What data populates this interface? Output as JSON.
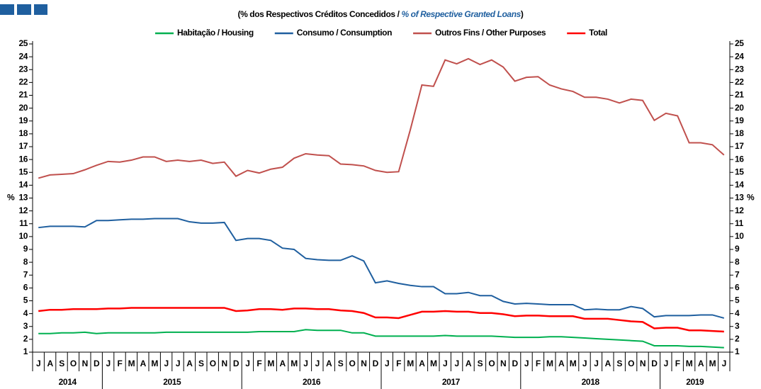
{
  "chart_data": {
    "type": "line",
    "subtitle": [
      "(% dos Respectivos  Créditos Concedidos  / ",
      "% of Respective Granted Loans",
      ")"
    ],
    "y_label": "%",
    "categories": [
      "J",
      "A",
      "S",
      "O",
      "N",
      "D",
      "J",
      "F",
      "M",
      "A",
      "M",
      "J",
      "J",
      "A",
      "S",
      "O",
      "N",
      "D",
      "J",
      "F",
      "M",
      "A",
      "M",
      "J",
      "J",
      "A",
      "S",
      "O",
      "N",
      "D",
      "J",
      "F",
      "M",
      "A",
      "M",
      "J",
      "J",
      "A",
      "S",
      "O",
      "N",
      "D",
      "J",
      "F",
      "M",
      "A",
      "M",
      "J",
      "J",
      "A",
      "S",
      "O",
      "N",
      "D",
      "J",
      "F",
      "M",
      "A",
      "M",
      "J"
    ],
    "x_groups": [
      "2014",
      "2015",
      "2016",
      "2017",
      "2018",
      "2019"
    ],
    "ylim": [
      1,
      25
    ],
    "yticks": [
      1,
      2,
      3,
      4,
      5,
      6,
      7,
      8,
      9,
      10,
      11,
      12,
      13,
      14,
      15,
      16,
      17,
      18,
      19,
      20,
      21,
      22,
      23,
      24,
      25
    ],
    "series": [
      {
        "name": "Habitação / Housing",
        "color": "#00b050",
        "values": [
          2.45,
          2.45,
          2.5,
          2.5,
          2.55,
          2.45,
          2.5,
          2.5,
          2.5,
          2.5,
          2.5,
          2.55,
          2.55,
          2.55,
          2.55,
          2.55,
          2.55,
          2.55,
          2.55,
          2.6,
          2.6,
          2.6,
          2.6,
          2.75,
          2.7,
          2.7,
          2.7,
          2.5,
          2.5,
          2.25,
          2.25,
          2.25,
          2.25,
          2.25,
          2.25,
          2.3,
          2.25,
          2.25,
          2.25,
          2.25,
          2.2,
          2.15,
          2.15,
          2.15,
          2.2,
          2.2,
          2.15,
          2.1,
          2.05,
          2.0,
          1.95,
          1.9,
          1.85,
          1.5,
          1.5,
          1.5,
          1.45,
          1.45,
          1.4,
          1.35
        ]
      },
      {
        "name": "Consumo / Consumption",
        "color": "#1f5f9f",
        "values": [
          10.7,
          10.8,
          10.8,
          10.8,
          10.75,
          11.25,
          11.25,
          11.3,
          11.35,
          11.35,
          11.4,
          11.4,
          11.4,
          11.15,
          11.05,
          11.05,
          11.1,
          9.7,
          9.85,
          9.85,
          9.7,
          9.1,
          9.0,
          8.3,
          8.2,
          8.15,
          8.15,
          8.5,
          8.1,
          6.4,
          6.55,
          6.35,
          6.2,
          6.1,
          6.1,
          5.55,
          5.55,
          5.65,
          5.4,
          5.4,
          4.95,
          4.75,
          4.8,
          4.75,
          4.7,
          4.7,
          4.7,
          4.3,
          4.35,
          4.3,
          4.3,
          4.55,
          4.4,
          3.75,
          3.85,
          3.85,
          3.85,
          3.9,
          3.9,
          3.65
        ]
      },
      {
        "name": "Outros Fins / Other Purposes",
        "color": "#c0504d",
        "values": [
          14.55,
          14.8,
          14.85,
          14.9,
          15.2,
          15.55,
          15.85,
          15.8,
          15.95,
          16.2,
          16.2,
          15.85,
          15.95,
          15.85,
          15.95,
          15.7,
          15.8,
          14.7,
          15.15,
          14.95,
          15.25,
          15.4,
          16.1,
          16.45,
          16.35,
          16.3,
          15.65,
          15.6,
          15.5,
          15.15,
          15.0,
          15.05,
          18.3,
          21.8,
          21.7,
          23.75,
          23.45,
          23.85,
          23.4,
          23.75,
          23.2,
          22.1,
          22.4,
          22.45,
          21.8,
          21.5,
          21.3,
          20.85,
          20.85,
          20.7,
          20.4,
          20.7,
          20.6,
          19.05,
          19.6,
          19.4,
          17.3,
          17.3,
          17.15,
          16.35
        ]
      },
      {
        "name": "Total",
        "color": "#ff0000",
        "values": [
          4.2,
          4.3,
          4.3,
          4.35,
          4.35,
          4.35,
          4.4,
          4.4,
          4.45,
          4.45,
          4.45,
          4.45,
          4.45,
          4.45,
          4.45,
          4.45,
          4.45,
          4.2,
          4.25,
          4.35,
          4.35,
          4.3,
          4.4,
          4.4,
          4.35,
          4.35,
          4.25,
          4.2,
          4.05,
          3.7,
          3.7,
          3.65,
          3.9,
          4.15,
          4.15,
          4.2,
          4.15,
          4.15,
          4.05,
          4.05,
          3.95,
          3.8,
          3.85,
          3.85,
          3.8,
          3.8,
          3.8,
          3.6,
          3.6,
          3.6,
          3.5,
          3.4,
          3.35,
          2.85,
          2.9,
          2.9,
          2.7,
          2.7,
          2.65,
          2.6
        ]
      }
    ]
  }
}
